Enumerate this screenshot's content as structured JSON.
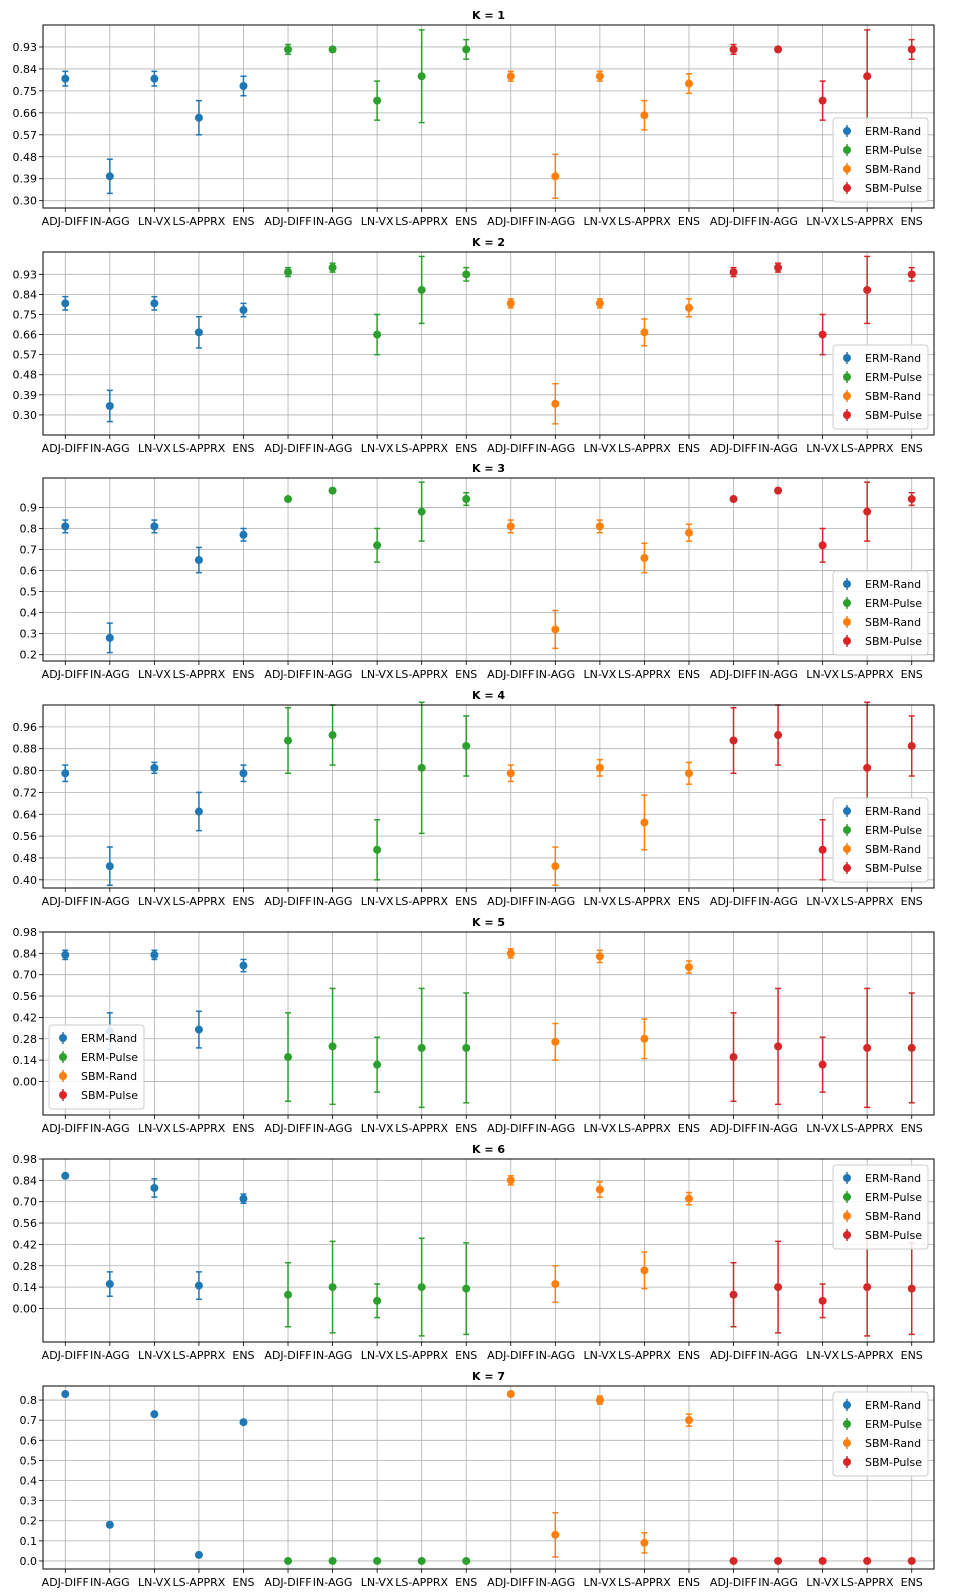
{
  "colors": {
    "ERM-Rand": "#1f77b4",
    "ERM-Pulse": "#2ca02c",
    "SBM-Rand": "#ff7f0e",
    "SBM-Pulse": "#d62728"
  },
  "chart_data": [
    {
      "type": "scatter",
      "title": "K = 1",
      "categories": [
        "ADJ-DIFF",
        "IN-AGG",
        "LN-VX",
        "LS-APPRX",
        "ENS",
        "ADJ-DIFF",
        "IN-AGG",
        "LN-VX",
        "LS-APPRX",
        "ENS",
        "ADJ-DIFF",
        "IN-AGG",
        "LN-VX",
        "LS-APPRX",
        "ENS",
        "ADJ-DIFF",
        "IN-AGG",
        "LN-VX",
        "LS-APPRX",
        "ENS"
      ],
      "yticks": [
        "0.30",
        "0.39",
        "0.48",
        "0.57",
        "0.66",
        "0.75",
        "0.84",
        "0.93"
      ],
      "ylim": [
        0.27,
        1.02
      ],
      "legend_position": "lower right",
      "series": [
        {
          "name": "ERM-Rand",
          "values": [
            0.8,
            0.4,
            0.8,
            0.64,
            0.77
          ],
          "errors": [
            0.03,
            0.07,
            0.03,
            0.07,
            0.04
          ]
        },
        {
          "name": "ERM-Pulse",
          "values": [
            0.92,
            0.92,
            0.71,
            0.81,
            0.92
          ],
          "errors": [
            0.02,
            0.01,
            0.08,
            0.19,
            0.04
          ]
        },
        {
          "name": "SBM-Rand",
          "values": [
            0.81,
            0.4,
            0.81,
            0.65,
            0.78
          ],
          "errors": [
            0.02,
            0.09,
            0.02,
            0.06,
            0.04
          ]
        },
        {
          "name": "SBM-Pulse",
          "values": [
            0.92,
            0.92,
            0.71,
            0.81,
            0.92
          ],
          "errors": [
            0.02,
            0.01,
            0.08,
            0.19,
            0.04
          ]
        }
      ]
    },
    {
      "type": "scatter",
      "title": "K = 2",
      "categories": [
        "ADJ-DIFF",
        "IN-AGG",
        "LN-VX",
        "LS-APPRX",
        "ENS",
        "ADJ-DIFF",
        "IN-AGG",
        "LN-VX",
        "LS-APPRX",
        "ENS",
        "ADJ-DIFF",
        "IN-AGG",
        "LN-VX",
        "LS-APPRX",
        "ENS",
        "ADJ-DIFF",
        "IN-AGG",
        "LN-VX",
        "LS-APPRX",
        "ENS"
      ],
      "yticks": [
        "0.30",
        "0.39",
        "0.48",
        "0.57",
        "0.66",
        "0.75",
        "0.84",
        "0.93"
      ],
      "ylim": [
        0.21,
        1.03
      ],
      "legend_position": "lower right",
      "series": [
        {
          "name": "ERM-Rand",
          "values": [
            0.8,
            0.34,
            0.8,
            0.67,
            0.77
          ],
          "errors": [
            0.03,
            0.07,
            0.03,
            0.07,
            0.03
          ]
        },
        {
          "name": "ERM-Pulse",
          "values": [
            0.94,
            0.96,
            0.66,
            0.86,
            0.93
          ],
          "errors": [
            0.02,
            0.02,
            0.09,
            0.15,
            0.03
          ]
        },
        {
          "name": "SBM-Rand",
          "values": [
            0.8,
            0.35,
            0.8,
            0.67,
            0.78
          ],
          "errors": [
            0.02,
            0.09,
            0.02,
            0.06,
            0.04
          ]
        },
        {
          "name": "SBM-Pulse",
          "values": [
            0.94,
            0.96,
            0.66,
            0.86,
            0.93
          ],
          "errors": [
            0.02,
            0.02,
            0.09,
            0.15,
            0.03
          ]
        }
      ]
    },
    {
      "type": "scatter",
      "title": "K = 3",
      "categories": [
        "ADJ-DIFF",
        "IN-AGG",
        "LN-VX",
        "LS-APPRX",
        "ENS",
        "ADJ-DIFF",
        "IN-AGG",
        "LN-VX",
        "LS-APPRX",
        "ENS",
        "ADJ-DIFF",
        "IN-AGG",
        "LN-VX",
        "LS-APPRX",
        "ENS",
        "ADJ-DIFF",
        "IN-AGG",
        "LN-VX",
        "LS-APPRX",
        "ENS"
      ],
      "yticks": [
        "0.2",
        "0.3",
        "0.4",
        "0.5",
        "0.6",
        "0.7",
        "0.8",
        "0.9"
      ],
      "ylim": [
        0.17,
        1.04
      ],
      "legend_position": "lower right",
      "series": [
        {
          "name": "ERM-Rand",
          "values": [
            0.81,
            0.28,
            0.81,
            0.65,
            0.77
          ],
          "errors": [
            0.03,
            0.07,
            0.03,
            0.06,
            0.03
          ]
        },
        {
          "name": "ERM-Pulse",
          "values": [
            0.94,
            0.98,
            0.72,
            0.88,
            0.94
          ],
          "errors": [
            0.01,
            0.01,
            0.08,
            0.14,
            0.03
          ]
        },
        {
          "name": "SBM-Rand",
          "values": [
            0.81,
            0.32,
            0.81,
            0.66,
            0.78
          ],
          "errors": [
            0.03,
            0.09,
            0.03,
            0.07,
            0.04
          ]
        },
        {
          "name": "SBM-Pulse",
          "values": [
            0.94,
            0.98,
            0.72,
            0.88,
            0.94
          ],
          "errors": [
            0.01,
            0.01,
            0.08,
            0.14,
            0.03
          ]
        }
      ]
    },
    {
      "type": "scatter",
      "title": "K = 4",
      "categories": [
        "ADJ-DIFF",
        "IN-AGG",
        "LN-VX",
        "LS-APPRX",
        "ENS",
        "ADJ-DIFF",
        "IN-AGG",
        "LN-VX",
        "LS-APPRX",
        "ENS",
        "ADJ-DIFF",
        "IN-AGG",
        "LN-VX",
        "LS-APPRX",
        "ENS",
        "ADJ-DIFF",
        "IN-AGG",
        "LN-VX",
        "LS-APPRX",
        "ENS"
      ],
      "yticks": [
        "0.40",
        "0.48",
        "0.56",
        "0.64",
        "0.72",
        "0.80",
        "0.88",
        "0.96"
      ],
      "ylim": [
        0.37,
        1.04
      ],
      "legend_position": "lower right",
      "series": [
        {
          "name": "ERM-Rand",
          "values": [
            0.79,
            0.45,
            0.81,
            0.65,
            0.79
          ],
          "errors": [
            0.03,
            0.07,
            0.02,
            0.07,
            0.03
          ]
        },
        {
          "name": "ERM-Pulse",
          "values": [
            0.91,
            0.93,
            0.51,
            0.81,
            0.89
          ],
          "errors": [
            0.12,
            0.11,
            0.11,
            0.24,
            0.11
          ]
        },
        {
          "name": "SBM-Rand",
          "values": [
            0.79,
            0.45,
            0.81,
            0.61,
            0.79
          ],
          "errors": [
            0.03,
            0.07,
            0.03,
            0.1,
            0.04
          ]
        },
        {
          "name": "SBM-Pulse",
          "values": [
            0.91,
            0.93,
            0.51,
            0.81,
            0.89
          ],
          "errors": [
            0.12,
            0.11,
            0.11,
            0.24,
            0.11
          ]
        }
      ]
    },
    {
      "type": "scatter",
      "title": "K = 5",
      "categories": [
        "ADJ-DIFF",
        "IN-AGG",
        "LN-VX",
        "LS-APPRX",
        "ENS",
        "ADJ-DIFF",
        "IN-AGG",
        "LN-VX",
        "LS-APPRX",
        "ENS",
        "ADJ-DIFF",
        "IN-AGG",
        "LN-VX",
        "LS-APPRX",
        "ENS",
        "ADJ-DIFF",
        "IN-AGG",
        "LN-VX",
        "LS-APPRX",
        "ENS"
      ],
      "yticks": [
        "0.00",
        "0.14",
        "0.28",
        "0.42",
        "0.56",
        "0.70",
        "0.84",
        "0.98"
      ],
      "ylim": [
        -0.22,
        0.98
      ],
      "legend_position": "lower left",
      "series": [
        {
          "name": "ERM-Rand",
          "values": [
            0.83,
            0.33,
            0.83,
            0.34,
            0.76
          ],
          "errors": [
            0.03,
            0.12,
            0.03,
            0.12,
            0.04
          ]
        },
        {
          "name": "ERM-Pulse",
          "values": [
            0.16,
            0.23,
            0.11,
            0.22,
            0.22
          ],
          "errors": [
            0.29,
            0.38,
            0.18,
            0.39,
            0.36
          ]
        },
        {
          "name": "SBM-Rand",
          "values": [
            0.84,
            0.26,
            0.82,
            0.28,
            0.75
          ],
          "errors": [
            0.03,
            0.12,
            0.04,
            0.13,
            0.04
          ]
        },
        {
          "name": "SBM-Pulse",
          "values": [
            0.16,
            0.23,
            0.11,
            0.22,
            0.22
          ],
          "errors": [
            0.29,
            0.38,
            0.18,
            0.39,
            0.36
          ]
        }
      ]
    },
    {
      "type": "scatter",
      "title": "K = 6",
      "categories": [
        "ADJ-DIFF",
        "IN-AGG",
        "LN-VX",
        "LS-APPRX",
        "ENS",
        "ADJ-DIFF",
        "IN-AGG",
        "LN-VX",
        "LS-APPRX",
        "ENS",
        "ADJ-DIFF",
        "IN-AGG",
        "LN-VX",
        "LS-APPRX",
        "ENS",
        "ADJ-DIFF",
        "IN-AGG",
        "LN-VX",
        "LS-APPRX",
        "ENS"
      ],
      "yticks": [
        "0.00",
        "0.14",
        "0.28",
        "0.42",
        "0.56",
        "0.70",
        "0.84",
        "0.98"
      ],
      "ylim": [
        -0.22,
        0.98
      ],
      "legend_position": "upper right",
      "series": [
        {
          "name": "ERM-Rand",
          "values": [
            0.87,
            0.16,
            0.79,
            0.15,
            0.72
          ],
          "errors": [
            0.01,
            0.08,
            0.06,
            0.09,
            0.03
          ]
        },
        {
          "name": "ERM-Pulse",
          "values": [
            0.09,
            0.14,
            0.05,
            0.14,
            0.13
          ],
          "errors": [
            0.21,
            0.3,
            0.11,
            0.32,
            0.3
          ]
        },
        {
          "name": "SBM-Rand",
          "values": [
            0.84,
            0.16,
            0.78,
            0.25,
            0.72
          ],
          "errors": [
            0.03,
            0.12,
            0.05,
            0.12,
            0.04
          ]
        },
        {
          "name": "SBM-Pulse",
          "values": [
            0.09,
            0.14,
            0.05,
            0.14,
            0.13
          ],
          "errors": [
            0.21,
            0.3,
            0.11,
            0.32,
            0.3
          ]
        }
      ]
    },
    {
      "type": "scatter",
      "title": "K = 7",
      "categories": [
        "ADJ-DIFF",
        "IN-AGG",
        "LN-VX",
        "LS-APPRX",
        "ENS",
        "ADJ-DIFF",
        "IN-AGG",
        "LN-VX",
        "LS-APPRX",
        "ENS",
        "ADJ-DIFF",
        "IN-AGG",
        "LN-VX",
        "LS-APPRX",
        "ENS",
        "ADJ-DIFF",
        "IN-AGG",
        "LN-VX",
        "LS-APPRX",
        "ENS"
      ],
      "yticks": [
        "0.0",
        "0.1",
        "0.2",
        "0.3",
        "0.4",
        "0.5",
        "0.6",
        "0.7",
        "0.8"
      ],
      "ylim": [
        -0.04,
        0.87
      ],
      "legend_position": "upper right",
      "series": [
        {
          "name": "ERM-Rand",
          "values": [
            0.83,
            0.18,
            0.73,
            0.03,
            0.69
          ],
          "errors": [
            0.01,
            0.01,
            0.01,
            0.01,
            0.01
          ]
        },
        {
          "name": "ERM-Pulse",
          "values": [
            0.0,
            0.0,
            0.0,
            0.0,
            0.0
          ],
          "errors": [
            0.0,
            0.0,
            0.0,
            0.0,
            0.0
          ]
        },
        {
          "name": "SBM-Rand",
          "values": [
            0.83,
            0.13,
            0.8,
            0.09,
            0.7
          ],
          "errors": [
            0.01,
            0.11,
            0.02,
            0.05,
            0.03
          ]
        },
        {
          "name": "SBM-Pulse",
          "values": [
            0.0,
            0.0,
            0.0,
            0.0,
            0.0
          ],
          "errors": [
            0.0,
            0.0,
            0.0,
            0.0,
            0.0
          ]
        }
      ]
    }
  ]
}
